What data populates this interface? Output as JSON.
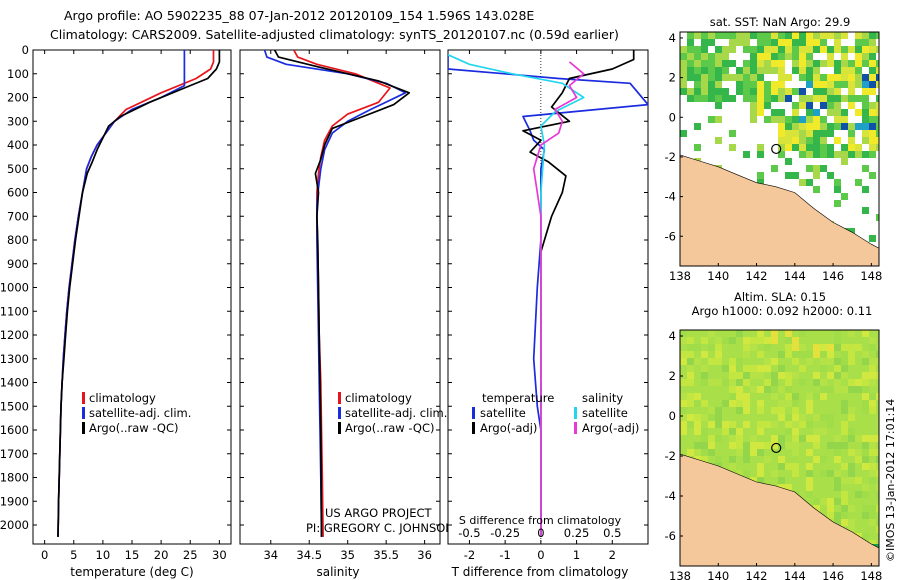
{
  "header": {
    "line1": "Argo profile: AO 5902235_88 07-Jan-2012 20120109_154 1.596S 143.028E",
    "line2": "Climatology: CARS2009. Satellite-adjusted climatology: synTS_20120107.nc (0.59d earlier)"
  },
  "project": {
    "line1": "US ARGO PROJECT",
    "line2": "PI: GREGORY C. JOHNSON"
  },
  "timestamp": "©IMOS 13-Jan-2012 17:01:14",
  "colors": {
    "red": "#e8141b",
    "blue": "#1a2be0",
    "black": "#000000",
    "cyan": "#22d6ee",
    "magenta": "#e838d8",
    "land": "#f5c89b"
  },
  "chart_data": [
    {
      "id": "temperature",
      "type": "line",
      "xlabel": "temperature (deg C)",
      "ylabel": "",
      "xlim": [
        -2,
        32
      ],
      "ylim": [
        2080,
        0
      ],
      "xticks": [
        0,
        5,
        10,
        15,
        20,
        25,
        30
      ],
      "yticks": [
        0,
        100,
        200,
        300,
        400,
        500,
        600,
        700,
        800,
        900,
        1000,
        1100,
        1200,
        1300,
        1400,
        1500,
        1600,
        1700,
        1800,
        1900,
        2000
      ],
      "legend": [
        "climatology",
        "satellite-adj. clim.",
        "Argo(..raw -QC)"
      ],
      "series": [
        {
          "name": "climatology",
          "color": "#e8141b",
          "x": [
            29.0,
            29.0,
            28.5,
            26.0,
            20.0,
            14.0,
            12.0,
            10.5,
            9.0,
            8.0,
            7.2,
            6.5,
            5.8,
            5.2,
            4.7,
            4.2,
            3.8,
            3.5,
            3.2,
            3.0,
            2.8,
            2.6,
            2.4,
            2.3
          ],
          "y": [
            0,
            50,
            80,
            120,
            180,
            250,
            300,
            350,
            400,
            450,
            500,
            600,
            700,
            800,
            900,
            1000,
            1100,
            1200,
            1300,
            1400,
            1500,
            1700,
            1900,
            2050
          ]
        },
        {
          "name": "satellite-adj. clim.",
          "color": "#1a2be0",
          "x": [
            24.0,
            24.0,
            24.0,
            20.0,
            15.0,
            12.0,
            10.5,
            9.0,
            8.0,
            7.2,
            6.5,
            5.8,
            5.2,
            4.7,
            4.2,
            3.8,
            3.5,
            3.2,
            3.0,
            2.8,
            2.6,
            2.4,
            2.3
          ],
          "y": [
            0,
            100,
            150,
            200,
            250,
            300,
            350,
            400,
            450,
            500,
            600,
            700,
            800,
            900,
            1000,
            1100,
            1200,
            1300,
            1400,
            1500,
            1700,
            1900,
            2050
          ]
        },
        {
          "name": "Argo(..raw -QC)",
          "color": "#000000",
          "x": [
            30.0,
            30.0,
            29.5,
            28.0,
            24.0,
            18.0,
            13.0,
            11.0,
            10.0,
            9.0,
            8.2,
            7.3,
            6.5,
            5.9,
            5.3,
            4.8,
            4.3,
            3.9,
            3.6,
            3.3,
            3.0,
            2.8,
            2.6,
            2.4,
            2.3
          ],
          "y": [
            0,
            50,
            80,
            120,
            160,
            220,
            280,
            320,
            370,
            420,
            470,
            520,
            600,
            700,
            800,
            900,
            1000,
            1100,
            1200,
            1300,
            1400,
            1500,
            1700,
            1900,
            2050
          ]
        }
      ]
    },
    {
      "id": "salinity",
      "type": "line",
      "xlabel": "salinity",
      "xlim": [
        33.6,
        36.2
      ],
      "ylim": [
        2080,
        0
      ],
      "xticks": [
        34,
        34.5,
        35,
        35.5,
        36
      ],
      "legend": [
        "climatology",
        "satellite-adj. clim.",
        "Argo(..raw -QC)"
      ],
      "series": [
        {
          "name": "climatology",
          "color": "#e8141b",
          "x": [
            34.3,
            34.35,
            34.6,
            35.1,
            35.55,
            35.4,
            35.0,
            34.8,
            34.7,
            34.65,
            34.62,
            34.6,
            34.6,
            34.61,
            34.62,
            34.63,
            34.65,
            34.66,
            34.67,
            34.68
          ],
          "y": [
            0,
            30,
            60,
            100,
            160,
            220,
            270,
            320,
            380,
            450,
            520,
            600,
            700,
            800,
            1000,
            1200,
            1400,
            1600,
            1800,
            2050
          ]
        },
        {
          "name": "satellite-adj. clim.",
          "color": "#1a2be0",
          "x": [
            33.92,
            33.95,
            34.2,
            35.0,
            35.5,
            35.75,
            35.3,
            35.0,
            34.8,
            34.7,
            34.65,
            34.62,
            34.6,
            34.6,
            34.61,
            34.62,
            34.63,
            34.64,
            34.65,
            34.66
          ],
          "y": [
            0,
            30,
            60,
            100,
            140,
            180,
            250,
            300,
            350,
            420,
            500,
            580,
            650,
            800,
            1000,
            1200,
            1400,
            1600,
            1800,
            2050
          ]
        },
        {
          "name": "Argo(..raw -QC)",
          "color": "#000000",
          "x": [
            34.05,
            34.1,
            34.6,
            35.4,
            35.8,
            35.6,
            35.2,
            34.8,
            34.7,
            34.65,
            34.58,
            34.62,
            34.6,
            34.61,
            34.62,
            34.63,
            34.64,
            34.65,
            34.66
          ],
          "y": [
            0,
            30,
            70,
            130,
            180,
            230,
            280,
            330,
            400,
            460,
            520,
            600,
            700,
            800,
            1000,
            1200,
            1400,
            1600,
            2050
          ]
        }
      ]
    },
    {
      "id": "difference",
      "type": "line",
      "xlabel": "T difference from climatology",
      "xlabel_top": "S difference from climatology",
      "xlim": [
        -2.6,
        3.0
      ],
      "ylim": [
        2080,
        0
      ],
      "xticks": [
        -2,
        -1,
        0,
        1,
        2
      ],
      "top_ticks": [
        "-0.5",
        "-0.25",
        "0",
        "0.25",
        "0.5"
      ],
      "legend_titles": [
        "temperature",
        "salinity"
      ],
      "legend": [
        "satellite",
        "Argo(-adj)",
        "satellite",
        "Argo(-adj)"
      ],
      "series": [
        {
          "name": "T satellite",
          "color": "#1a2be0",
          "x": [
            -2.6,
            -2.6,
            -1.0,
            0.5,
            2.5,
            3.0,
            -0.5,
            -0.3,
            -0.2,
            0.1,
            0.0,
            0.0,
            0.0,
            0.0,
            -0.1,
            -0.2,
            -0.1,
            0.0,
            0.0,
            0.0,
            0.0
          ],
          "y": [
            20,
            80,
            100,
            120,
            140,
            230,
            280,
            340,
            380,
            420,
            500,
            600,
            700,
            800,
            1000,
            1300,
            1500,
            1600,
            1800,
            2000,
            2050
          ]
        },
        {
          "name": "T Argo(-adj)",
          "color": "#000000",
          "x": [
            2.6,
            2.6,
            2.0,
            0.8,
            0.6,
            0.3,
            0.8,
            -0.5,
            0.0,
            -0.3,
            0.2,
            0.7,
            0.6,
            0.3,
            0.0,
            0.0,
            0.0,
            0.0,
            0.0
          ],
          "y": [
            0,
            40,
            80,
            120,
            180,
            240,
            300,
            340,
            380,
            430,
            470,
            530,
            600,
            700,
            850,
            1000,
            1300,
            1600,
            2050
          ]
        },
        {
          "name": "S satellite",
          "color": "#22d6ee",
          "x": [
            -2.6,
            -2.0,
            -0.8,
            0.6,
            1.2,
            0.4,
            0.0,
            0.1,
            0.0,
            0.0,
            0.0,
            0.0,
            0.0
          ],
          "y": [
            20,
            60,
            100,
            140,
            200,
            260,
            320,
            400,
            600,
            800,
            1000,
            1500,
            2050
          ]
        },
        {
          "name": "S Argo(-adj)",
          "color": "#e838d8",
          "x": [
            0.8,
            1.2,
            0.8,
            1.0,
            0.4,
            0.6,
            0.5,
            0.0,
            -0.2,
            0.0,
            0.0,
            0.0,
            0.0
          ],
          "y": [
            50,
            100,
            150,
            200,
            250,
            300,
            350,
            400,
            500,
            700,
            1000,
            1500,
            2050
          ]
        }
      ]
    },
    {
      "id": "sst-map",
      "type": "heatmap",
      "title": "sat. SST: NaN Argo: 29.9",
      "xlim": [
        138,
        148.4
      ],
      "ylim": [
        -7.5,
        4.3
      ],
      "xticks": [
        138,
        140,
        142,
        144,
        146,
        148
      ],
      "yticks": [
        -6,
        -4,
        -2,
        0,
        2,
        4
      ],
      "argo_position": [
        143.028,
        -1.596
      ]
    },
    {
      "id": "sla-map",
      "type": "heatmap",
      "title_line1": "Altim. SLA: 0.15",
      "title_line2": "Argo h1000: 0.092 h2000: 0.11",
      "xlim": [
        138,
        148.4
      ],
      "ylim": [
        -7.5,
        4.3
      ],
      "xticks": [
        138,
        140,
        142,
        144,
        146,
        148
      ],
      "yticks": [
        -6,
        -4,
        -2,
        0,
        2,
        4
      ],
      "argo_position": [
        143.028,
        -1.596
      ]
    }
  ]
}
